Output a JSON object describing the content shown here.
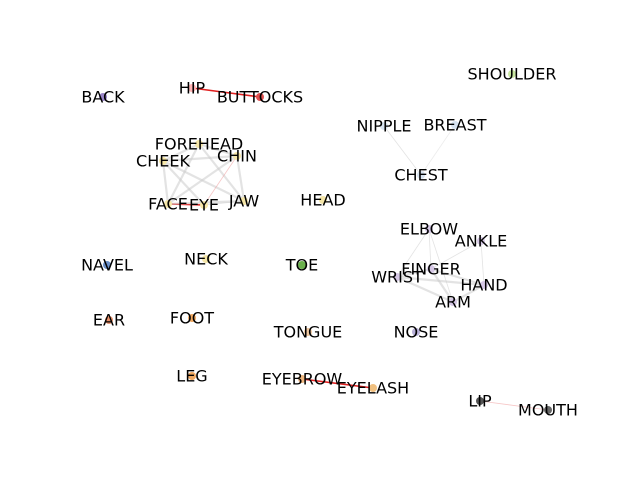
{
  "nodes": [
    {
      "id": "hip",
      "label": "HIP",
      "color": "#ffb3b3"
    },
    {
      "id": "buttocks",
      "label": "BUTTOCKS",
      "color": "#e05050"
    },
    {
      "id": "back",
      "label": "BACK",
      "color": "#9a86c8"
    },
    {
      "id": "shoulder",
      "label": "SHOULDER",
      "color": "#c8e6a0"
    },
    {
      "id": "nipple",
      "label": "NIPPLE",
      "color": "#d7e3f0"
    },
    {
      "id": "breast",
      "label": "BREAST",
      "color": "#d7e3f0"
    },
    {
      "id": "chest",
      "label": "CHEST",
      "color": "#d7e3f0"
    },
    {
      "id": "forehead",
      "label": "FOREHEAD",
      "color": "#f5e6a8"
    },
    {
      "id": "cheek",
      "label": "CHEEK",
      "color": "#f5e6a8"
    },
    {
      "id": "chin",
      "label": "CHIN",
      "color": "#f5e6a8"
    },
    {
      "id": "face",
      "label": "FACE",
      "color": "#f5e6a8"
    },
    {
      "id": "eye",
      "label": "EYE",
      "color": "#f5e6a8"
    },
    {
      "id": "jaw",
      "label": "JAW",
      "color": "#f5e6a8"
    },
    {
      "id": "head",
      "label": "HEAD",
      "color": "#f5e6a8"
    },
    {
      "id": "elbow",
      "label": "ELBOW",
      "color": "#d6c8e6"
    },
    {
      "id": "ankle",
      "label": "ANKLE",
      "color": "#d6c8e6"
    },
    {
      "id": "finger",
      "label": "FINGER",
      "color": "#d6c8e6"
    },
    {
      "id": "wrist",
      "label": "WRIST",
      "color": "#d6c8e6"
    },
    {
      "id": "hand",
      "label": "HAND",
      "color": "#d6c8e6"
    },
    {
      "id": "arm",
      "label": "ARM",
      "color": "#d6c8e6"
    },
    {
      "id": "navel",
      "label": "NAVEL",
      "color": "#6a8fc8"
    },
    {
      "id": "neck",
      "label": "NECK",
      "color": "#f5e6a8"
    },
    {
      "id": "toe",
      "label": "TOE",
      "color": "#6ab04c"
    },
    {
      "id": "ear",
      "label": "EAR",
      "color": "#e8906a"
    },
    {
      "id": "foot",
      "label": "FOOT",
      "color": "#f0a860"
    },
    {
      "id": "tongue",
      "label": "TONGUE",
      "color": "#f0c8a0"
    },
    {
      "id": "nose",
      "label": "NOSE",
      "color": "#b8b0d8"
    },
    {
      "id": "leg",
      "label": "LEG",
      "color": "#f0a860"
    },
    {
      "id": "eyebrow",
      "label": "EYEBROW",
      "color": "#f0b880"
    },
    {
      "id": "eyelash",
      "label": "EYELASH",
      "color": "#f0c080"
    },
    {
      "id": "lip",
      "label": "LIP",
      "color": "#555555"
    },
    {
      "id": "mouth",
      "label": "MOUTH",
      "color": "#666666"
    }
  ],
  "edges": [
    {
      "source": "hip",
      "target": "buttocks",
      "color": "#e02020",
      "strength": "strong"
    },
    {
      "source": "eyebrow",
      "target": "eyelash",
      "color": "#e02020",
      "strength": "strong"
    },
    {
      "source": "face",
      "target": "eye",
      "color": "#e02020",
      "strength": "strong"
    },
    {
      "source": "lip",
      "target": "mouth",
      "color": "#f0a0a0",
      "strength": "weak"
    },
    {
      "source": "forehead",
      "target": "cheek",
      "color": "#cccccc",
      "strength": "medium"
    },
    {
      "source": "forehead",
      "target": "chin",
      "color": "#cccccc",
      "strength": "medium"
    },
    {
      "source": "forehead",
      "target": "face",
      "color": "#cccccc",
      "strength": "medium"
    },
    {
      "source": "forehead",
      "target": "jaw",
      "color": "#cccccc",
      "strength": "medium"
    },
    {
      "source": "cheek",
      "target": "chin",
      "color": "#cccccc",
      "strength": "medium"
    },
    {
      "source": "cheek",
      "target": "face",
      "color": "#cccccc",
      "strength": "medium"
    },
    {
      "source": "cheek",
      "target": "eye",
      "color": "#cccccc",
      "strength": "medium"
    },
    {
      "source": "cheek",
      "target": "jaw",
      "color": "#cccccc",
      "strength": "medium"
    },
    {
      "source": "chin",
      "target": "jaw",
      "color": "#cccccc",
      "strength": "medium"
    },
    {
      "source": "chin",
      "target": "face",
      "color": "#cccccc",
      "strength": "medium"
    },
    {
      "source": "chin",
      "target": "eye",
      "color": "#f0a0a0",
      "strength": "weak"
    },
    {
      "source": "face",
      "target": "jaw",
      "color": "#cccccc",
      "strength": "medium"
    },
    {
      "source": "eye",
      "target": "jaw",
      "color": "#cccccc",
      "strength": "weak"
    },
    {
      "source": "nipple",
      "target": "chest",
      "color": "#d0d0d0",
      "strength": "weak"
    },
    {
      "source": "breast",
      "target": "chest",
      "color": "#e0e0e0",
      "strength": "weak"
    },
    {
      "source": "elbow",
      "target": "wrist",
      "color": "#d0d0d0",
      "strength": "weak"
    },
    {
      "source": "elbow",
      "target": "arm",
      "color": "#d0d0d0",
      "strength": "weak"
    },
    {
      "source": "elbow",
      "target": "finger",
      "color": "#d0d0d0",
      "strength": "weak"
    },
    {
      "source": "ankle",
      "target": "finger",
      "color": "#d0d0d0",
      "strength": "weak"
    },
    {
      "source": "ankle",
      "target": "hand",
      "color": "#d0d0d0",
      "strength": "weak"
    },
    {
      "source": "wrist",
      "target": "arm",
      "color": "#cccccc",
      "strength": "medium"
    },
    {
      "source": "wrist",
      "target": "hand",
      "color": "#cccccc",
      "strength": "medium"
    },
    {
      "source": "wrist",
      "target": "finger",
      "color": "#cccccc",
      "strength": "medium"
    },
    {
      "source": "finger",
      "target": "hand",
      "color": "#cccccc",
      "strength": "medium"
    },
    {
      "source": "finger",
      "target": "arm",
      "color": "#cccccc",
      "strength": "medium"
    },
    {
      "source": "hand",
      "target": "arm",
      "color": "#cccccc",
      "strength": "medium"
    }
  ]
}
